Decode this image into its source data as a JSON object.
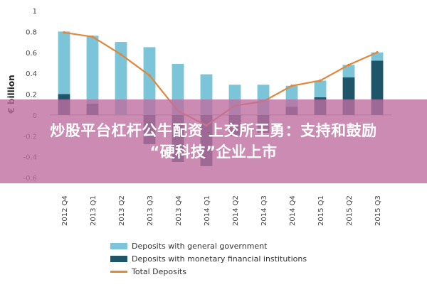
{
  "chart_data": {
    "type": "bar",
    "categories": [
      "2012 Q4",
      "2013 Q1",
      "2013 Q2",
      "2013 Q3",
      "2013 Q4",
      "2014 Q1",
      "2014 Q2",
      "2014 Q3",
      "2014 Q4",
      "2015 Q1",
      "2015 Q2",
      "2015 Q3"
    ],
    "ylabel": "€ billion",
    "ylim": [
      -0.6,
      1
    ],
    "yticks": [
      -0.6,
      -0.4,
      -0.2,
      0,
      0.2,
      0.4,
      0.6,
      0.8,
      1
    ],
    "ytick_labels": [
      "-0.6",
      "-0.4",
      "-0.2",
      "0",
      "0.2",
      "0.4",
      "0.6",
      "0.8",
      "1"
    ],
    "stacked": true,
    "series": [
      {
        "name": "Deposits with general government",
        "color": "#7cc4d8",
        "values": [
          0.6,
          0.65,
          0.7,
          0.65,
          0.49,
          0.39,
          0.29,
          0.29,
          0.2,
          0.16,
          0.12,
          0.08
        ]
      },
      {
        "name": "Deposits with monetary financial institutions",
        "color": "#1e5568",
        "values": [
          0.2,
          0.11,
          0.0,
          -0.28,
          -0.45,
          -0.49,
          -0.2,
          -0.17,
          0.08,
          0.17,
          0.36,
          0.52
        ]
      },
      {
        "name": "Total Deposits",
        "type": "line",
        "color": "#e0873c",
        "values": [
          0.79,
          0.75,
          0.58,
          0.38,
          0.04,
          -0.1,
          0.09,
          0.13,
          0.28,
          0.33,
          0.48,
          0.6
        ]
      }
    ],
    "legend": "bottom"
  },
  "overlay": {
    "line1": "炒股平台杠杆公牛配资 上交所王勇：支持和鼓励",
    "line2": "“硬科技”企业上市"
  }
}
